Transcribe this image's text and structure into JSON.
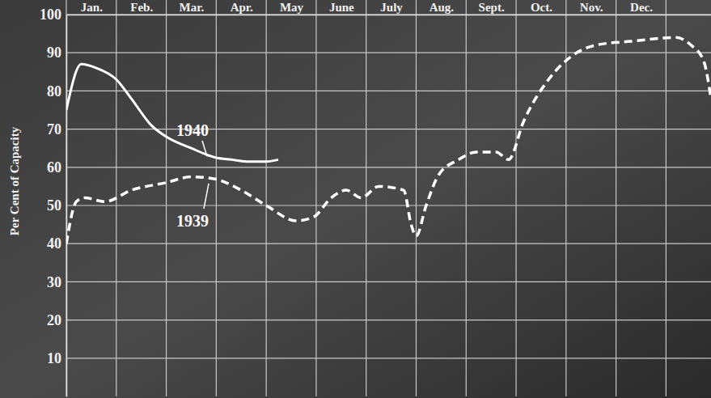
{
  "chart_data": {
    "type": "line",
    "y_label": "Per Cent of Capacity",
    "xlim": [
      0,
      12.9
    ],
    "xticks": [
      {
        "value": 0.5,
        "label": "Jan."
      },
      {
        "value": 1.5,
        "label": "Feb."
      },
      {
        "value": 2.5,
        "label": "Mar."
      },
      {
        "value": 3.5,
        "label": "Apr."
      },
      {
        "value": 4.5,
        "label": "May"
      },
      {
        "value": 5.5,
        "label": "June"
      },
      {
        "value": 6.5,
        "label": "July"
      },
      {
        "value": 7.5,
        "label": "Aug."
      },
      {
        "value": 8.5,
        "label": "Sept."
      },
      {
        "value": 9.5,
        "label": "Oct."
      },
      {
        "value": 10.5,
        "label": "Nov."
      },
      {
        "value": 11.5,
        "label": "Dec."
      }
    ],
    "ylim": [
      0,
      100
    ],
    "yticks": [
      10,
      20,
      30,
      40,
      50,
      60,
      70,
      80,
      90,
      100
    ],
    "grid": true,
    "series": [
      {
        "name": "1940",
        "color": "#ffffff",
        "line_style": "solid",
        "x": [
          0,
          0.3,
          0.6,
          1.0,
          1.3,
          1.7,
          2.0,
          2.5,
          3.0,
          3.3,
          3.6,
          4.0,
          4.24
        ],
        "values": [
          75,
          87,
          86,
          83,
          78,
          71,
          68,
          65,
          62.5,
          62,
          61.5,
          61.5,
          62
        ]
      },
      {
        "name": "1939",
        "color": "#ffffff",
        "line_style": "dashed",
        "x": [
          0,
          0.2,
          0.37,
          0.77,
          1.3,
          2.0,
          2.5,
          2.95,
          3.5,
          4.0,
          4.6,
          4.95,
          5.3,
          5.6,
          5.9,
          6.25,
          6.75,
          6.9,
          7.0,
          7.2,
          7.45,
          7.85,
          8.2,
          8.6,
          8.85,
          9.15,
          9.65,
          10.1,
          10.6,
          11.3,
          12.2,
          12.5,
          12.75,
          12.9
        ],
        "values": [
          40,
          51,
          52,
          51,
          54,
          56,
          57.5,
          57,
          54,
          50,
          46,
          47,
          52,
          54,
          52,
          55,
          54,
          45,
          42,
          50,
          58,
          62,
          64,
          64,
          62,
          72,
          83,
          89,
          92,
          93,
          94,
          92,
          88,
          78
        ]
      }
    ]
  }
}
